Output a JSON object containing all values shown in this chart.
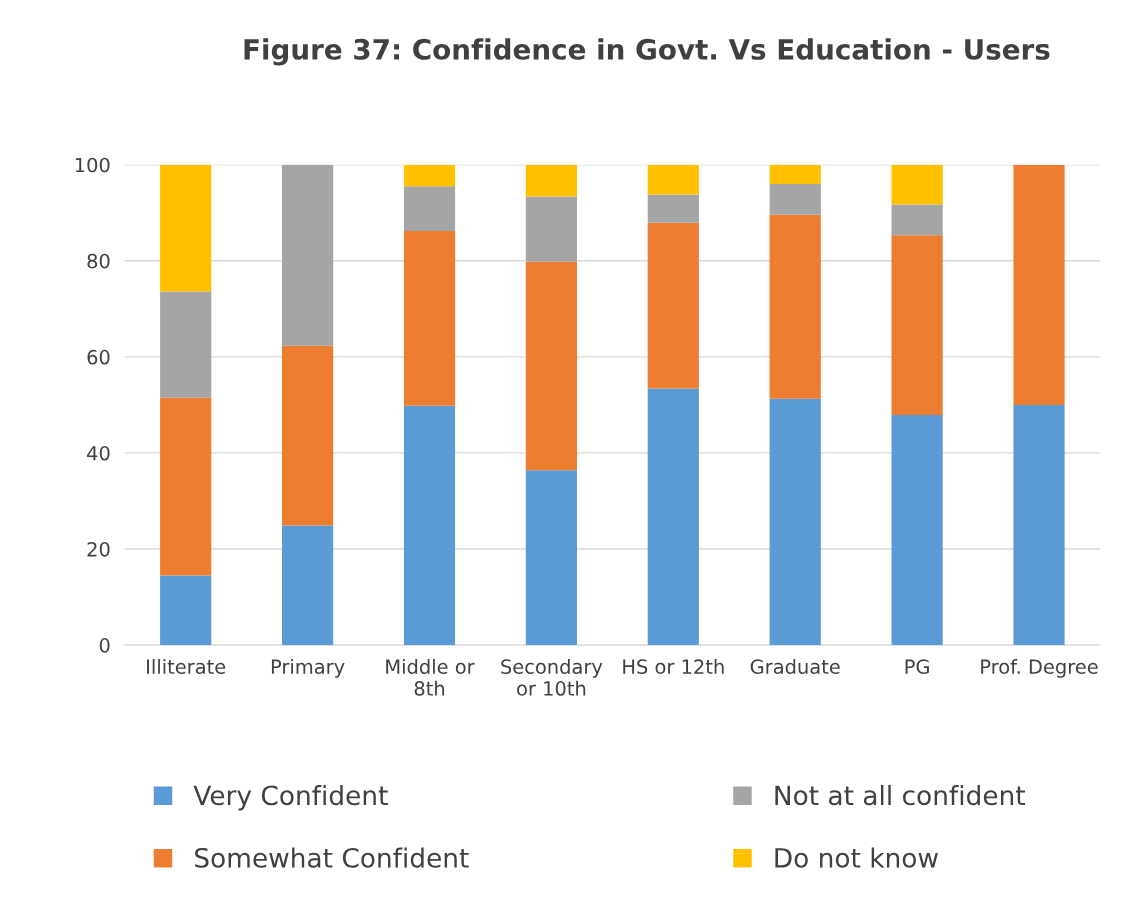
{
  "chart_data": {
    "type": "bar",
    "title": "Figure 37: Confidence in Govt. Vs Education - Users",
    "categories": [
      "Illiterate",
      "Primary",
      "Middle or\n8th",
      "Secondary\nor 10th",
      "HS or 12th",
      "Graduate",
      "PG",
      "Prof. Degree"
    ],
    "stacked": true,
    "series": [
      {
        "name": "Very Confident",
        "color": "#5b9bd5",
        "values": [
          14.5,
          24.9,
          49.8,
          36.4,
          53.4,
          51.3,
          47.9,
          50
        ]
      },
      {
        "name": "Somewhat Confident",
        "color": "#ed7d31",
        "values": [
          37,
          37.4,
          36.4,
          43.4,
          34.5,
          38.3,
          37.4,
          50
        ]
      },
      {
        "name": "Not at all confident",
        "color": "#a5a5a5",
        "values": [
          22.1,
          37.7,
          9.3,
          13.6,
          5.9,
          6.4,
          6.4,
          0
        ]
      },
      {
        "name": "Do not know",
        "color": "#ffc000",
        "values": [
          26.4,
          0,
          4.5,
          6.6,
          6.2,
          4.0,
          8.3,
          0
        ]
      }
    ],
    "ylim": [
      0,
      100
    ],
    "yticks": [
      0,
      20,
      40,
      60,
      80,
      100
    ],
    "grid": "y",
    "legend": "bottom"
  }
}
